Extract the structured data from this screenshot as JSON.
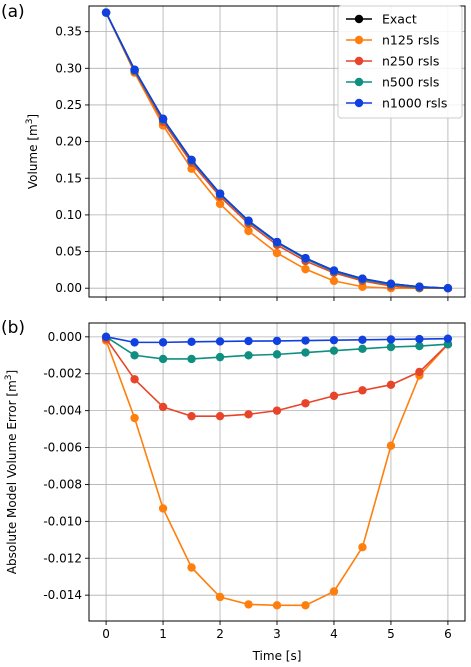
{
  "chart_data": [
    {
      "type": "line",
      "panel_label": "(a)",
      "ylabel": "Volume [m",
      "ylabel_sup": "3",
      "ylabel_end": "]",
      "xlim": [
        -0.3,
        6.3
      ],
      "ylim": [
        -0.012,
        0.385
      ],
      "xticks": [
        0,
        1,
        2,
        3,
        4,
        5,
        6
      ],
      "xtick_labels": [
        "",
        "",
        "",
        "",
        "",
        "",
        ""
      ],
      "yticks": [
        0.0,
        0.05,
        0.1,
        0.15,
        0.2,
        0.25,
        0.3,
        0.35
      ],
      "ytick_labels": [
        "0.00",
        "0.05",
        "0.10",
        "0.15",
        "0.20",
        "0.25",
        "0.30",
        "0.35"
      ],
      "grid": true,
      "legend": "top-right",
      "x": [
        0,
        0.5,
        1,
        1.5,
        2,
        2.5,
        3,
        3.5,
        4,
        4.5,
        5,
        5.5,
        6
      ],
      "series": [
        {
          "name": "Exact",
          "color": "#000000",
          "values": [
            0.376,
            0.298,
            0.231,
            0.175,
            0.129,
            0.092,
            0.063,
            0.041,
            0.024,
            0.013,
            0.006,
            0.002,
            0.0
          ]
        },
        {
          "name": "n125 rsls",
          "color": "#ff7f0e",
          "values": [
            0.376,
            0.294,
            0.222,
            0.163,
            0.115,
            0.078,
            0.048,
            0.026,
            0.01,
            0.002,
            0.0,
            0.0,
            0.0
          ]
        },
        {
          "name": "n250 rsls",
          "color": "#e8442a",
          "values": [
            0.376,
            0.296,
            0.227,
            0.171,
            0.125,
            0.088,
            0.059,
            0.037,
            0.021,
            0.01,
            0.003,
            0.0,
            0.0
          ]
        },
        {
          "name": "n500 rsls",
          "color": "#0f8f80",
          "values": [
            0.376,
            0.297,
            0.23,
            0.174,
            0.128,
            0.091,
            0.062,
            0.04,
            0.023,
            0.012,
            0.005,
            0.001,
            0.0
          ]
        },
        {
          "name": "n1000 rsls",
          "color": "#1040e0",
          "values": [
            0.376,
            0.298,
            0.231,
            0.175,
            0.129,
            0.092,
            0.063,
            0.041,
            0.024,
            0.013,
            0.006,
            0.002,
            0.0
          ]
        }
      ]
    },
    {
      "type": "line",
      "panel_label": "(b)",
      "ylabel": "Absolute Model Volume Error [m",
      "ylabel_sup": "3",
      "ylabel_end": "]",
      "xlabel": "Time [s]",
      "xlim": [
        -0.3,
        6.3
      ],
      "ylim": [
        -0.0154,
        0.00075
      ],
      "xticks": [
        0,
        1,
        2,
        3,
        4,
        5,
        6
      ],
      "xtick_labels": [
        "0",
        "1",
        "2",
        "3",
        "4",
        "5",
        "6"
      ],
      "yticks": [
        0.0,
        -0.002,
        -0.004,
        -0.006,
        -0.008,
        -0.01,
        -0.012,
        -0.014
      ],
      "ytick_labels": [
        "0.000",
        "-0.002",
        "-0.004",
        "-0.006",
        "-0.008",
        "-0.010",
        "-0.012",
        "-0.014"
      ],
      "grid": true,
      "x": [
        0,
        0.5,
        1,
        1.5,
        2,
        2.5,
        3,
        3.5,
        4,
        4.5,
        5,
        5.5,
        6
      ],
      "series": [
        {
          "name": "n125 rsls",
          "color": "#ff7f0e",
          "values": [
            -0.0002,
            -0.0044,
            -0.0093,
            -0.0125,
            -0.0141,
            -0.0145,
            -0.01455,
            -0.01455,
            -0.0138,
            -0.0114,
            -0.0059,
            -0.0021,
            -0.0004
          ]
        },
        {
          "name": "n250 rsls",
          "color": "#e8442a",
          "values": [
            -0.0001,
            -0.0023,
            -0.0038,
            -0.0043,
            -0.0043,
            -0.0042,
            -0.004,
            -0.0036,
            -0.0032,
            -0.0029,
            -0.0026,
            -0.0019,
            -0.0004
          ]
        },
        {
          "name": "n500 rsls",
          "color": "#0f8f80",
          "values": [
            0.0,
            -0.001,
            -0.0012,
            -0.0012,
            -0.0011,
            -0.001,
            -0.00095,
            -0.00085,
            -0.00075,
            -0.00065,
            -0.00055,
            -0.0005,
            -0.0004
          ]
        },
        {
          "name": "n1000 rsls",
          "color": "#1040e0",
          "values": [
            0.0,
            -0.0003,
            -0.0003,
            -0.00027,
            -0.00025,
            -0.00023,
            -0.00022,
            -0.0002,
            -0.00018,
            -0.00016,
            -0.00014,
            -0.00012,
            -0.0001
          ]
        }
      ]
    }
  ]
}
